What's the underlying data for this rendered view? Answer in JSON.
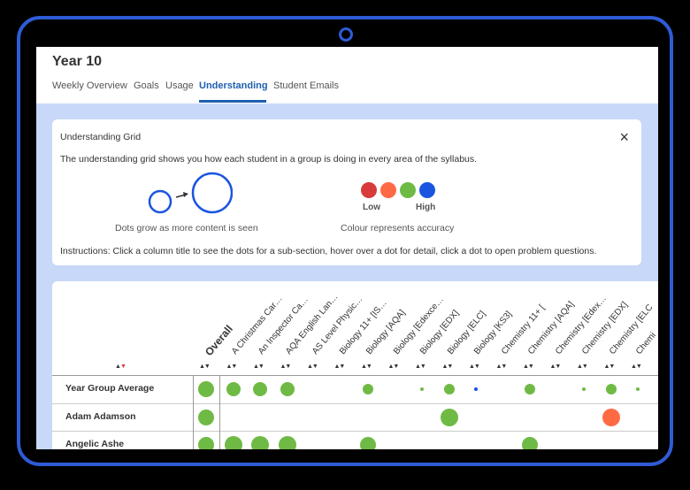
{
  "header": {
    "title": "Year 10",
    "tabs": [
      "Weekly Overview",
      "Goals",
      "Usage",
      "Understanding",
      "Student Emails"
    ],
    "active_tab": "Understanding"
  },
  "info_card": {
    "title": "Understanding Grid",
    "close_glyph": "×",
    "description": "The understanding grid shows you how each student in a group is doing in every area of the syllabus.",
    "size_caption": "Dots grow as more content is seen",
    "low_label": "Low",
    "high_label": "High",
    "colour_caption": "Colour represents accuracy",
    "instructions": "Instructions: Click a column title to see the dots for a sub-section, hover over a dot for detail, click a dot to open problem questions.",
    "accuracy_colors": [
      "#d93a3a",
      "#ff6a45",
      "#6fba44",
      "#1a55e0"
    ]
  },
  "grid": {
    "columns": [
      "Overall",
      "A Christmas Car…",
      "An Inspector Ca…",
      "AQA English Lan…",
      "AS Level Physic…",
      "Biology 11+ [IS…",
      "Biology [AQA]",
      "Biology [Edexce…",
      "Biology [EDX]",
      "Biology [ELC]",
      "Biology [KS3]",
      "Chemistry 11+ [",
      "Chemistry [AQA]",
      "Chemistry [Edex…",
      "Chemistry [EDX]",
      "Chemistry [ELC",
      "Chemi"
    ],
    "sort_glyph": "▲▼",
    "rows": [
      {
        "name": "Year Group Average",
        "dots": [
          {
            "col": 0,
            "size": "large",
            "color": "green"
          },
          {
            "col": 1,
            "size": "medium",
            "color": "green"
          },
          {
            "col": 2,
            "size": "medium",
            "color": "green"
          },
          {
            "col": 3,
            "size": "medium",
            "color": "green"
          },
          {
            "col": 6,
            "size": "small",
            "color": "green"
          },
          {
            "col": 8,
            "size": "tiny",
            "color": "green"
          },
          {
            "col": 9,
            "size": "small",
            "color": "green"
          },
          {
            "col": 10,
            "size": "tiny",
            "color": "blue"
          },
          {
            "col": 12,
            "size": "small",
            "color": "green"
          },
          {
            "col": 14,
            "size": "tiny",
            "color": "green"
          },
          {
            "col": 15,
            "size": "small",
            "color": "green"
          },
          {
            "col": 16,
            "size": "tiny",
            "color": "green"
          }
        ]
      },
      {
        "name": "Adam Adamson",
        "dots": [
          {
            "col": 0,
            "size": "large",
            "color": "green"
          },
          {
            "col": 9,
            "size": "xlarge",
            "color": "green"
          },
          {
            "col": 15,
            "size": "xlarge",
            "color": "orange"
          }
        ]
      },
      {
        "name": "Angelic Ashe",
        "dots": [
          {
            "col": 0,
            "size": "large",
            "color": "green"
          },
          {
            "col": 1,
            "size": "xlarge",
            "color": "green"
          },
          {
            "col": 2,
            "size": "xlarge",
            "color": "green"
          },
          {
            "col": 3,
            "size": "xlarge",
            "color": "green"
          },
          {
            "col": 6,
            "size": "large",
            "color": "green"
          },
          {
            "col": 12,
            "size": "large",
            "color": "green"
          }
        ]
      }
    ],
    "dot_colors": {
      "green": "#6fba44",
      "orange": "#ff6a45",
      "blue": "#1a55e0"
    },
    "header_sort_colors": {
      "up": "#333333",
      "down": "#d93a3a"
    }
  }
}
